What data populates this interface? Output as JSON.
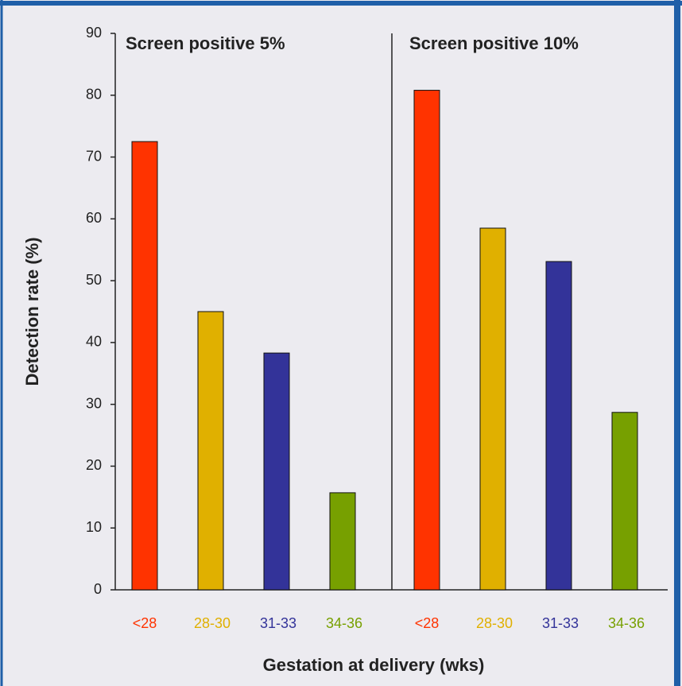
{
  "chart_data": [
    {
      "type": "bar",
      "title": "Screen positive 5%",
      "ylabel": "Detection rate (%)",
      "xlabel": "Gestation at delivery (wks)",
      "categories": [
        "<28",
        "28-30",
        "31-33",
        "34-36"
      ],
      "values": [
        72.5,
        45,
        38.3,
        15.7
      ],
      "colors": [
        "#ff3300",
        "#e0b000",
        "#333399",
        "#77a000"
      ],
      "ylim": [
        0,
        90
      ],
      "yticks": [
        0,
        10,
        20,
        30,
        40,
        50,
        60,
        70,
        80,
        90
      ]
    },
    {
      "type": "bar",
      "title": "Screen positive 10%",
      "categories": [
        "<28",
        "28-30",
        "31-33",
        "34-36"
      ],
      "values": [
        80.8,
        58.5,
        53.1,
        28.7
      ],
      "colors": [
        "#ff3300",
        "#e0b000",
        "#333399",
        "#77a000"
      ],
      "ylim": [
        0,
        90
      ]
    }
  ]
}
